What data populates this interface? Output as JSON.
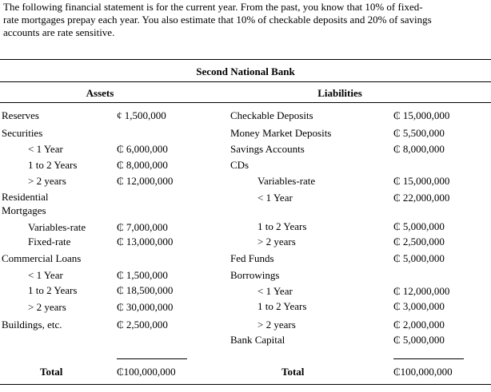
{
  "intro": [
    "The following financial statement is for the current year. From the past, you know that 10% of fixed-",
    "rate mortgages prepay each year. You also estimate that 10% of checkable deposits and 20% of savings",
    "accounts are rate sensitive."
  ],
  "table": {
    "title": "Second National Bank",
    "assets_header": "Assets",
    "liabilities_header": "Liabilities",
    "assets": [
      {
        "label": "Reserves",
        "value": "¢ 1,500,000"
      },
      {
        "label": "Securities"
      },
      {
        "label": "< 1 Year",
        "value": "₵ 6,000,000"
      },
      {
        "label": "1 to 2 Years",
        "value": "₵ 8,000,000"
      },
      {
        "label": "> 2 years",
        "value": "₵ 12,000,000"
      },
      {
        "label": "Residential"
      },
      {
        "label": "Mortgages"
      },
      {
        "label": "Variables-rate",
        "value": "₵ 7,000,000"
      },
      {
        "label": "Fixed-rate",
        "value": "₵ 13,000,000"
      },
      {
        "label": "Commercial Loans"
      },
      {
        "label": "< 1 Year",
        "value": "₵ 1,500,000"
      },
      {
        "label": "1 to 2 Years",
        "value": "₵ 18,500,000"
      },
      {
        "label": "> 2 years",
        "value": "₵ 30,000,000"
      },
      {
        "label": "Buildings, etc.",
        "value": "₵ 2,500,000"
      }
    ],
    "liabilities": [
      {
        "label": "Checkable Deposits",
        "value": "₵ 15,000,000"
      },
      {
        "label": "Money Market Deposits",
        "value": "₵ 5,500,000"
      },
      {
        "label": "Savings Accounts",
        "value": "₵ 8,000,000"
      },
      {
        "label": "CDs"
      },
      {
        "label": "Variables-rate",
        "value": "₵ 15,000,000"
      },
      {
        "label": "< 1 Year",
        "value": "₵ 22,000,000"
      },
      {
        "label": "1 to 2 Years",
        "value": "₵ 5,000,000"
      },
      {
        "label": "> 2 years",
        "value": "₵ 2,500,000"
      },
      {
        "label": "Fed Funds",
        "value": "₵ 5,000,000"
      },
      {
        "label": "Borrowings"
      },
      {
        "label": "< 1 Year",
        "value": "₵ 12,000,000"
      },
      {
        "label": "1 to 2 Years",
        "value": "₵ 3,000,000"
      },
      {
        "label": "> 2 years",
        "value": "₵ 2,000,000"
      },
      {
        "label": "Bank Capital",
        "value": "₵ 5,000,000"
      }
    ],
    "assets_total": {
      "label": "Total",
      "value": "₵100,000,000"
    },
    "liabilities_total": {
      "label": "Total",
      "value": "₵100,000,000"
    }
  }
}
